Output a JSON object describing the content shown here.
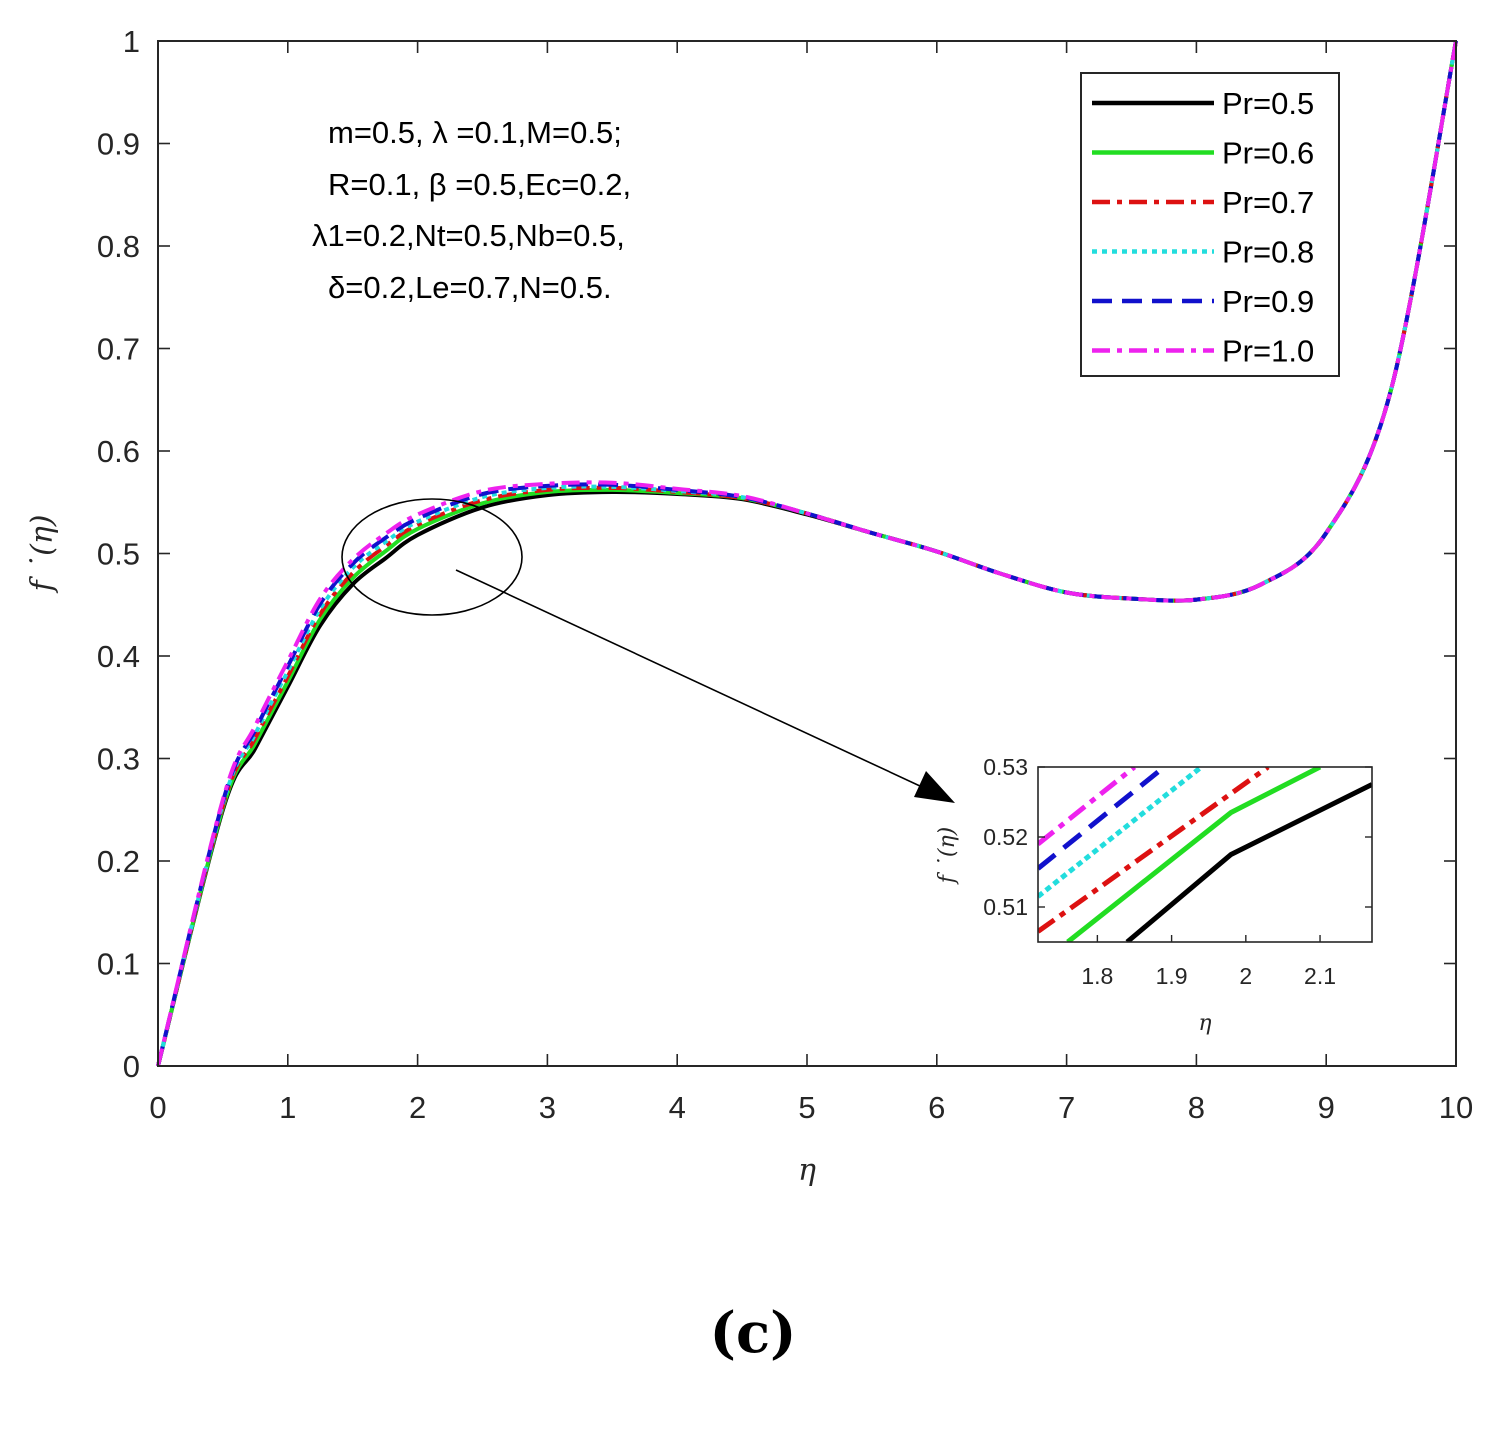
{
  "panel_label": "(c)",
  "chart_data": {
    "type": "line",
    "xlabel": "η",
    "ylabel": "f ˙(η)",
    "xlim": [
      0,
      10
    ],
    "ylim": [
      0,
      1
    ],
    "xticks": [
      "0",
      "1",
      "2",
      "3",
      "4",
      "5",
      "6",
      "7",
      "8",
      "9",
      "10"
    ],
    "yticks": [
      "0",
      "0.1",
      "0.2",
      "0.3",
      "0.4",
      "0.5",
      "0.6",
      "0.7",
      "0.8",
      "0.9",
      "1"
    ],
    "legend_position": "top-right",
    "annotation_lines": [
      "m=0.5, λ =0.1,M=0.5;",
      "R=0.1, β =0.5,Ec=0.2,",
      "λ1=0.2,Nt=0.5,Nb=0.5,",
      "δ=0.2,Le=0.7,N=0.5."
    ],
    "colors": [
      "#000000",
      "#22dd22",
      "#dd1111",
      "#22dddd",
      "#1111cc",
      "#ee22ee"
    ],
    "x": [
      0,
      0.5,
      0.75,
      1.0,
      1.25,
      1.5,
      1.75,
      2.0,
      2.5,
      3.0,
      3.5,
      4.0,
      4.5,
      5.0,
      5.5,
      6.0,
      6.5,
      7.0,
      7.5,
      8.0,
      8.5,
      9.0,
      9.5,
      10.0
    ],
    "series": [
      {
        "name": "Pr=0.5",
        "style": "solid",
        "values": [
          0,
          0.25,
          0.31,
          0.37,
          0.43,
          0.47,
          0.495,
          0.518,
          0.545,
          0.557,
          0.56,
          0.558,
          0.553,
          0.538,
          0.52,
          0.502,
          0.48,
          0.462,
          0.456,
          0.455,
          0.47,
          0.52,
          0.66,
          1.0
        ]
      },
      {
        "name": "Pr=0.6",
        "style": "solid",
        "values": [
          0,
          0.252,
          0.315,
          0.375,
          0.436,
          0.476,
          0.502,
          0.524,
          0.549,
          0.56,
          0.562,
          0.559,
          0.554,
          0.539,
          0.52,
          0.502,
          0.48,
          0.462,
          0.456,
          0.455,
          0.47,
          0.52,
          0.66,
          1.0
        ]
      },
      {
        "name": "Pr=0.7",
        "style": "dashdot",
        "values": [
          0,
          0.254,
          0.32,
          0.38,
          0.441,
          0.481,
          0.507,
          0.528,
          0.552,
          0.562,
          0.564,
          0.56,
          0.554,
          0.539,
          0.52,
          0.502,
          0.48,
          0.462,
          0.456,
          0.455,
          0.47,
          0.52,
          0.66,
          1.0
        ]
      },
      {
        "name": "Pr=0.8",
        "style": "dotted",
        "values": [
          0,
          0.256,
          0.324,
          0.385,
          0.446,
          0.486,
          0.511,
          0.531,
          0.555,
          0.564,
          0.565,
          0.561,
          0.555,
          0.539,
          0.52,
          0.502,
          0.48,
          0.462,
          0.456,
          0.455,
          0.47,
          0.52,
          0.66,
          1.0
        ]
      },
      {
        "name": "Pr=0.9",
        "style": "dashed",
        "values": [
          0,
          0.258,
          0.328,
          0.39,
          0.451,
          0.49,
          0.515,
          0.534,
          0.558,
          0.566,
          0.567,
          0.562,
          0.555,
          0.539,
          0.52,
          0.502,
          0.48,
          0.462,
          0.456,
          0.455,
          0.47,
          0.52,
          0.66,
          1.0
        ]
      },
      {
        "name": "Pr=1.0",
        "style": "dashdot",
        "values": [
          0,
          0.26,
          0.332,
          0.395,
          0.456,
          0.494,
          0.519,
          0.538,
          0.561,
          0.568,
          0.569,
          0.563,
          0.556,
          0.539,
          0.52,
          0.502,
          0.48,
          0.462,
          0.456,
          0.455,
          0.47,
          0.52,
          0.66,
          1.0
        ]
      }
    ],
    "inset": {
      "xlabel": "η",
      "ylabel": "f ˙(η)",
      "xlim": [
        1.72,
        2.17
      ],
      "ylim": [
        0.505,
        0.53
      ],
      "xticks": [
        "1.8",
        "1.9",
        "2",
        "2.1"
      ],
      "yticks": [
        "0.51",
        "0.52",
        "0.53"
      ],
      "series": [
        {
          "name": "Pr=0.5",
          "x": [
            1.84,
            1.98,
            2.17
          ],
          "values": [
            0.505,
            0.5175,
            0.5275
          ]
        },
        {
          "name": "Pr=0.6",
          "x": [
            1.76,
            1.98,
            2.1
          ],
          "values": [
            0.505,
            0.5235,
            0.53
          ]
        },
        {
          "name": "Pr=0.7",
          "x": [
            1.72,
            2.03
          ],
          "values": [
            0.5065,
            0.53
          ]
        },
        {
          "name": "Pr=0.8",
          "x": [
            1.72,
            1.94
          ],
          "values": [
            0.5115,
            0.53
          ]
        },
        {
          "name": "Pr=0.9",
          "x": [
            1.72,
            1.89
          ],
          "values": [
            0.5155,
            0.53
          ]
        },
        {
          "name": "Pr=1.0",
          "x": [
            1.72,
            1.85
          ],
          "values": [
            0.519,
            0.53
          ]
        }
      ]
    }
  }
}
